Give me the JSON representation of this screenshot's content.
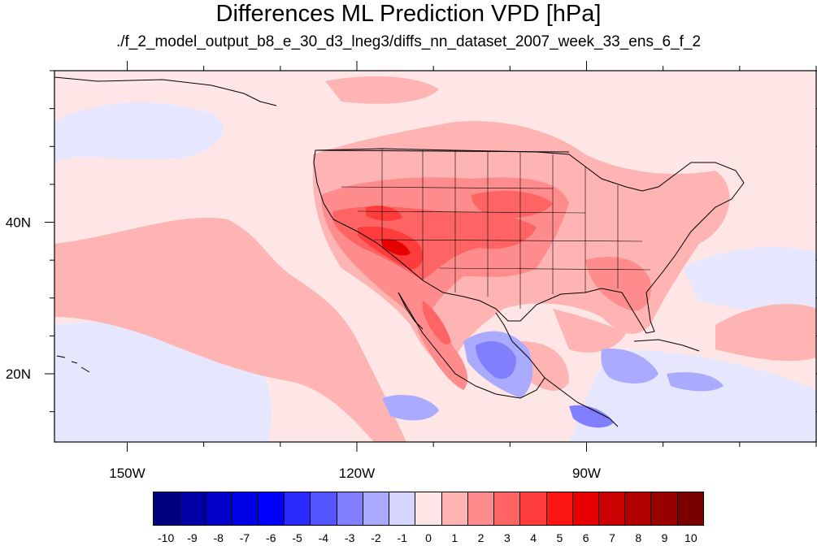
{
  "title": "Differences ML Prediction VPD [hPa]",
  "subtitle": "./f_2_model_output_b8_e_30_d3_lneg3/diffs_nn_dataset_2007_week_33_ens_6_f_2",
  "axes": {
    "x_ticks": [
      {
        "label": "150W",
        "lon": -150
      },
      {
        "label": "120W",
        "lon": -120
      },
      {
        "label": "90W",
        "lon": -90
      }
    ],
    "y_ticks": [
      {
        "label": "40N",
        "lat": 40
      },
      {
        "label": "20N",
        "lat": 20
      }
    ],
    "lon_range": [
      -159.5,
      -60
    ],
    "lat_range": [
      11,
      60
    ]
  },
  "colorbar": {
    "labels": [
      "-10",
      "-9",
      "-8",
      "-7",
      "-6",
      "-5",
      "-4",
      "-3",
      "-2",
      "-1",
      "0",
      "1",
      "2",
      "3",
      "4",
      "5",
      "6",
      "7",
      "8",
      "9",
      "10"
    ],
    "colors": [
      "#00007f",
      "#0000a5",
      "#0000c8",
      "#0000e6",
      "#0000ff",
      "#2a2aff",
      "#5555ff",
      "#8080ff",
      "#aaaaff",
      "#d5d5ff",
      "#ffe6e6",
      "#ffb4b4",
      "#ff8c8c",
      "#ff6464",
      "#ff3c3c",
      "#ff1414",
      "#e60000",
      "#cc0000",
      "#b30000",
      "#990000",
      "#7a0000"
    ]
  },
  "map_colors": {
    "background": "#ffe6e6",
    "light_blue": "#e6e6ff",
    "blue": "#aaaaff",
    "mid_blue": "#8080ff",
    "dark_blue": "#5555ff",
    "pink": "#ffb4b4",
    "salmon": "#ff8c8c",
    "red": "#ff6464",
    "strong_red": "#ff3c3c",
    "deep_red": "#e60000"
  }
}
